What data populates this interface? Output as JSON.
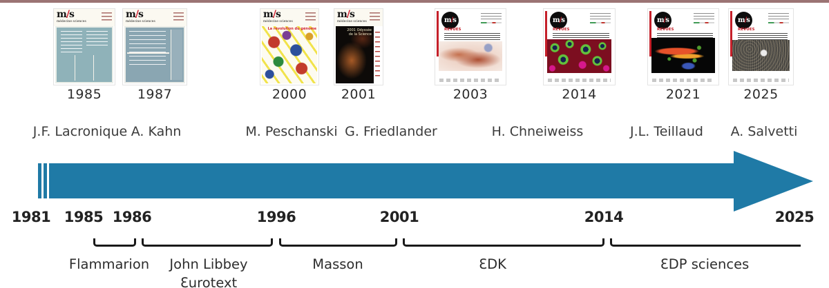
{
  "brand": {
    "logo_m": "m",
    "logo_slash": "/",
    "logo_s": "s",
    "logo_subtitle": "médecine sciences"
  },
  "colors": {
    "arrow_teal": "#1f7aa6",
    "top_border": "#9b7474",
    "accent_red": "#cf2030",
    "bracket_black": "#191919"
  },
  "covers": [
    {
      "year": "1985"
    },
    {
      "year": "1987"
    },
    {
      "year": "2000"
    },
    {
      "year": "2001"
    },
    {
      "year": "2003"
    },
    {
      "year": "2014"
    },
    {
      "year": "2021"
    },
    {
      "year": "2025"
    }
  ],
  "cover_texts": {
    "revues": "REVUES",
    "c2000_headline": "La révolution du génome",
    "c2001_title": "2001 Odyssée de la Science"
  },
  "editors": [
    {
      "name": "J.F. Lacronique"
    },
    {
      "name": "A. Kahn"
    },
    {
      "name": "M. Peschanski"
    },
    {
      "name": "G. Friedlander"
    },
    {
      "name": "H. Chneiweiss"
    },
    {
      "name": "J.L. Teillaud"
    },
    {
      "name": "A. Salvetti"
    }
  ],
  "timeline": {
    "years": [
      {
        "label": "1981"
      },
      {
        "label": "1985"
      },
      {
        "label": "1986"
      },
      {
        "label": "1996"
      },
      {
        "label": "2001"
      },
      {
        "label": "2014"
      },
      {
        "label": "2025"
      }
    ],
    "publishers": [
      {
        "name": "Flammarion",
        "name_line2": ""
      },
      {
        "name": "John Libbey",
        "name_line2": "Ɛurotext"
      },
      {
        "name": "Masson",
        "name_line2": ""
      },
      {
        "name": "ƐDK",
        "name_line2": ""
      },
      {
        "name": "ƐDP sciences",
        "name_line2": ""
      }
    ]
  }
}
